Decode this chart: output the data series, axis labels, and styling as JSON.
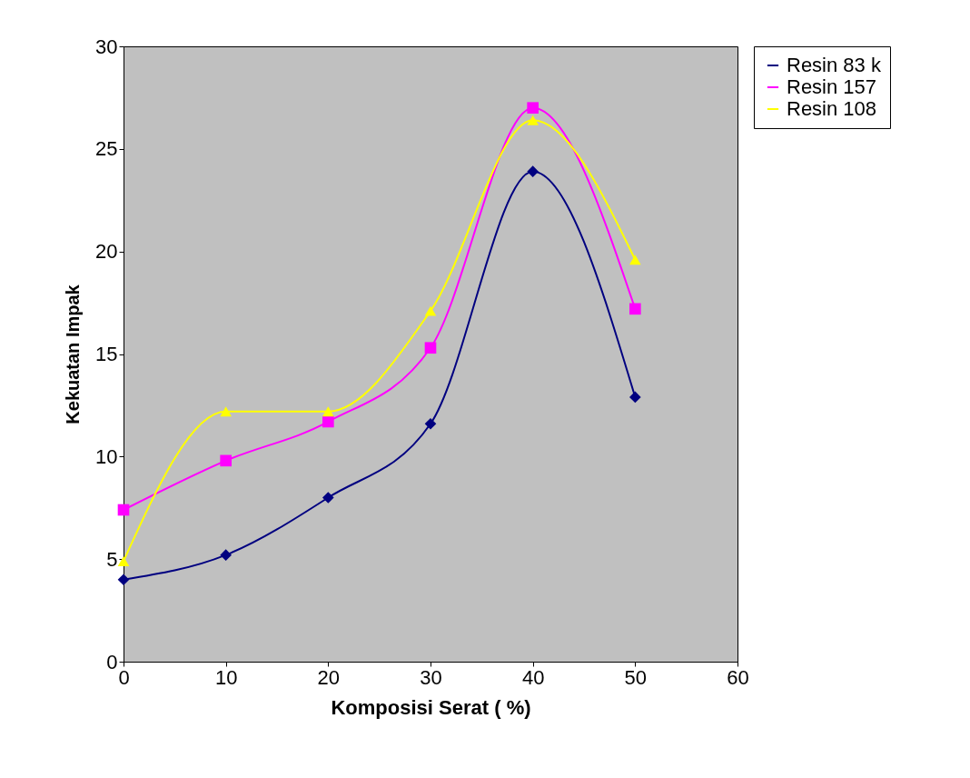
{
  "chart_data": {
    "type": "line",
    "xlabel": "Komposisi Serat ( %)",
    "ylabel": "Kekuatan Impak",
    "x": [
      0,
      10,
      20,
      30,
      40,
      50
    ],
    "series": [
      {
        "name": "Resin 83 k",
        "color": "#000080",
        "marker": "diamond",
        "values": [
          4.0,
          5.2,
          8.0,
          11.6,
          23.9,
          12.9
        ]
      },
      {
        "name": "Resin 157",
        "color": "#ff00ff",
        "marker": "square",
        "values": [
          7.4,
          9.8,
          11.7,
          15.3,
          27.0,
          17.2
        ]
      },
      {
        "name": "Resin 108",
        "color": "#ffff00",
        "marker": "triangle",
        "values": [
          4.9,
          12.2,
          12.2,
          17.1,
          26.4,
          19.6
        ]
      }
    ],
    "xlim": [
      0,
      60
    ],
    "xticks": [
      0,
      10,
      20,
      30,
      40,
      50,
      60
    ],
    "ylim": [
      0,
      30
    ],
    "yticks": [
      0,
      5,
      10,
      15,
      20,
      25,
      30
    ],
    "grid": false,
    "legend": "right",
    "line_style": "solid"
  }
}
